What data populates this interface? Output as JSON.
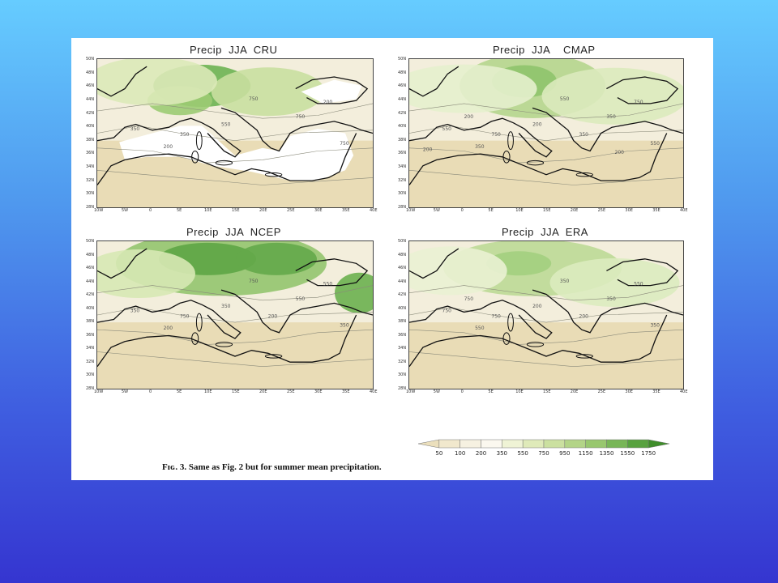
{
  "figure": {
    "caption": "Fɪɢ. 3. Same as Fig. 2 but for summer mean precipitation.",
    "panels": [
      {
        "id": "cru",
        "title": "Precip  JJA  CRU",
        "x_ticks": [
          "10W",
          "5W",
          "0",
          "5E",
          "10E",
          "15E",
          "20E",
          "25E",
          "30E",
          "35E",
          "40E"
        ],
        "contour_labels": [
          "750",
          "350",
          "200",
          "750",
          "550",
          "350",
          "200",
          "750"
        ]
      },
      {
        "id": "cmap",
        "title": "Precip  JJA    CMAP",
        "x_ticks": [
          "10W",
          "5W",
          "0",
          "5E",
          "10E",
          "15E",
          "20E",
          "25E",
          "30E",
          "35E",
          "40E"
        ],
        "contour_labels": [
          "550",
          "550",
          "350",
          "350",
          "200",
          "750",
          "750",
          "550",
          "350",
          "200",
          "200",
          "200"
        ]
      },
      {
        "id": "ncep",
        "title": "Precip  JJA  NCEP",
        "x_ticks": [
          "10W",
          "5W",
          "0",
          "5E",
          "10E",
          "15E",
          "20E",
          "25E",
          "30E",
          "35E",
          "40E"
        ],
        "contour_labels": [
          "750",
          "350",
          "200",
          "550",
          "350",
          "750",
          "550",
          "350",
          "200"
        ]
      },
      {
        "id": "era",
        "title": "Precip  JJA  ERA",
        "x_ticks": [
          "10W",
          "5W",
          "0",
          "5E",
          "10E",
          "15E",
          "20E",
          "25E",
          "30E",
          "35E",
          "40E"
        ],
        "contour_labels": [
          "350",
          "750",
          "550",
          "350",
          "200",
          "750",
          "550",
          "350",
          "200",
          "750"
        ]
      }
    ],
    "y_ticks": [
      "50N",
      "48N",
      "46N",
      "44N",
      "42N",
      "40N",
      "38N",
      "36N",
      "34N",
      "32N",
      "30N",
      "28N"
    ],
    "colorbar": {
      "labels": [
        "50",
        "100",
        "200",
        "350",
        "550",
        "750",
        "950",
        "1150",
        "1350",
        "1550",
        "1750"
      ],
      "colors": [
        "#ebdfbc",
        "#f1e8cd",
        "#f6f1e1",
        "#fbf8ef",
        "#eff3d5",
        "#dfeab9",
        "#cbe0a0",
        "#b3d487",
        "#98c76e",
        "#78b657",
        "#58a23f",
        "#3f8d2a"
      ]
    }
  }
}
